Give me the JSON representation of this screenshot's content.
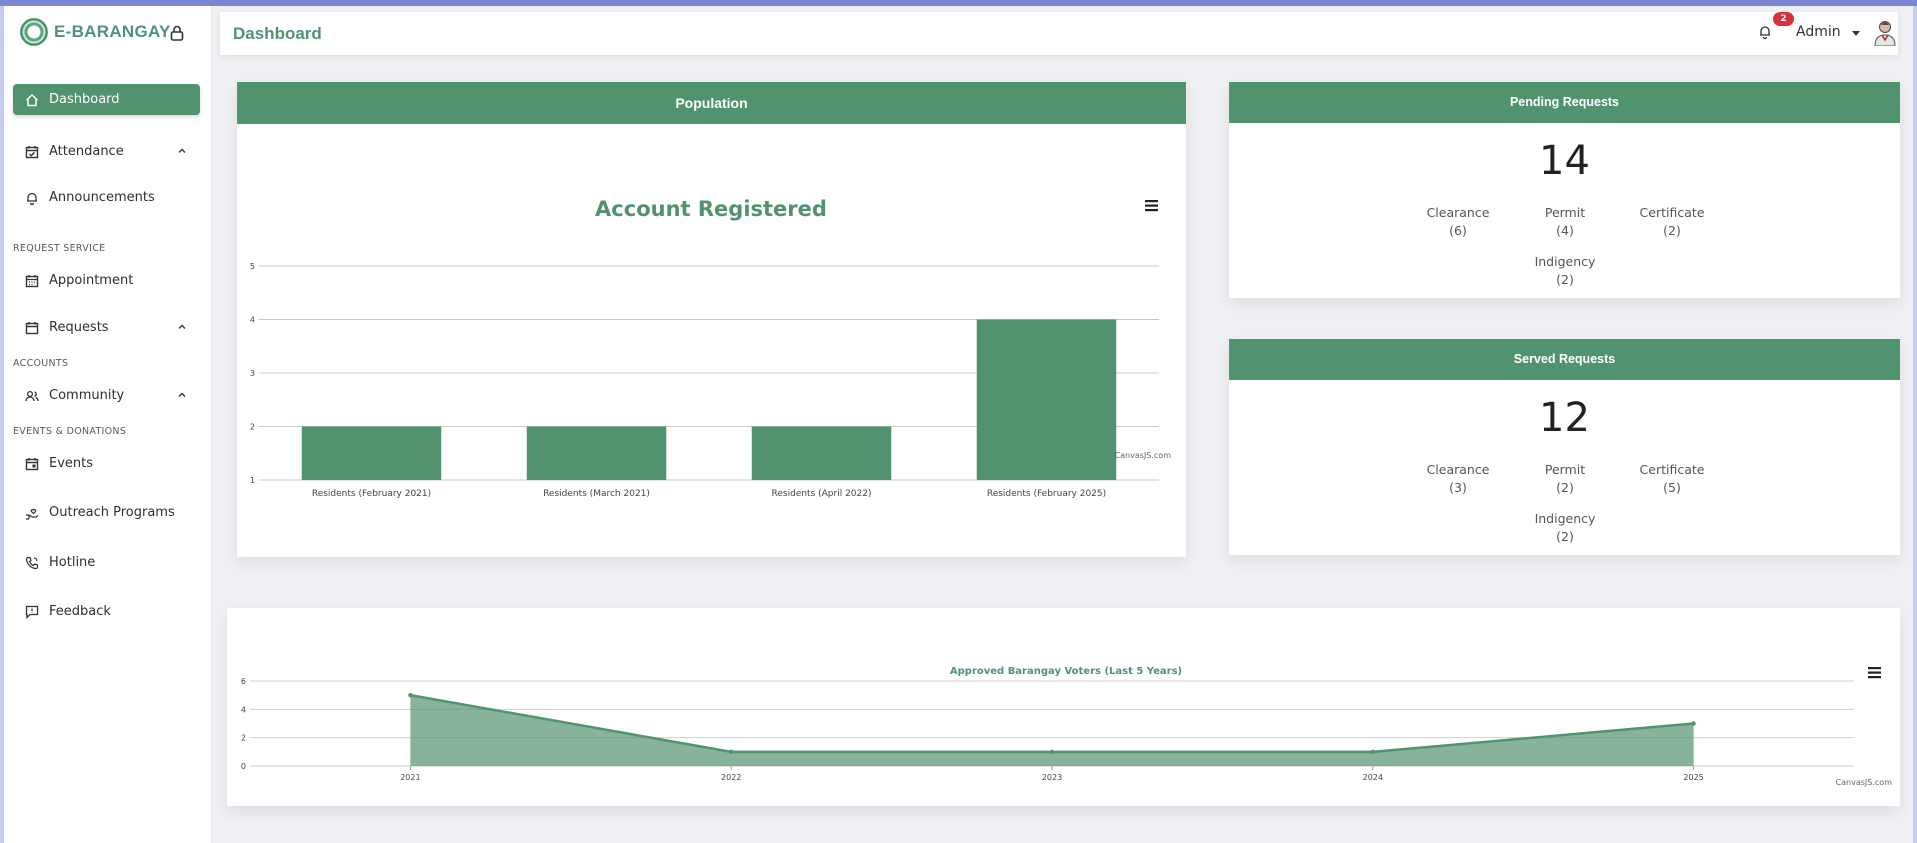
{
  "app": {
    "brand": "E-BARANGAY"
  },
  "header": {
    "title": "Dashboard",
    "notif_count": "2",
    "user_label": "Admin"
  },
  "sidebar": {
    "items": [
      {
        "label": "Dashboard",
        "icon": "home-icon",
        "active": true
      },
      {
        "label": "Attendance",
        "icon": "calendar-check-icon"
      },
      {
        "label": "Announcements",
        "icon": "bell-icon"
      },
      {
        "label": "Appointment",
        "icon": "calendar-icon"
      },
      {
        "label": "Requests",
        "icon": "calendar-blank-icon"
      },
      {
        "label": "Community",
        "icon": "users-icon"
      },
      {
        "label": "Events",
        "icon": "calendar-event-icon"
      },
      {
        "label": "Outreach Programs",
        "icon": "hand-heart-icon"
      },
      {
        "label": "Hotline",
        "icon": "phone-icon"
      },
      {
        "label": "Feedback",
        "icon": "message-icon"
      }
    ],
    "sections": {
      "request_service": "REQUEST SERVICE",
      "accounts": "ACCOUNTS",
      "events_donations": "EVENTS & DONATIONS"
    }
  },
  "population": {
    "title": "Population",
    "chart_credit": "CanvasJS.com"
  },
  "pending": {
    "title": "Pending Requests",
    "total": "14",
    "items": [
      {
        "label": "Clearance",
        "count": "(6)"
      },
      {
        "label": "Permit",
        "count": "(4)"
      },
      {
        "label": "Certificate",
        "count": "(2)"
      },
      {
        "label": "Indigency",
        "count": "(2)"
      }
    ]
  },
  "served": {
    "title": "Served Requests",
    "total": "12",
    "items": [
      {
        "label": "Clearance",
        "count": "(3)"
      },
      {
        "label": "Permit",
        "count": "(2)"
      },
      {
        "label": "Certificate",
        "count": "(5)"
      },
      {
        "label": "Indigency",
        "count": "(2)"
      }
    ]
  },
  "voters": {
    "chart_credit": "CanvasJS.com"
  },
  "chart_data": [
    {
      "type": "bar",
      "title": "Account Registered",
      "categories": [
        "Residents (February 2021)",
        "Residents (March 2021)",
        "Residents (April 2022)",
        "Residents (February 2025)"
      ],
      "values": [
        2,
        2,
        2,
        4
      ],
      "ylim": [
        1,
        5
      ],
      "yticks": [
        1,
        2,
        3,
        4,
        5
      ],
      "grid": true,
      "color": "#52936f"
    },
    {
      "type": "area",
      "title": "Approved Barangay Voters (Last 5 Years)",
      "x": [
        "2021",
        "2022",
        "2023",
        "2024",
        "2025"
      ],
      "values": [
        5,
        1,
        1,
        1,
        3
      ],
      "ylim": [
        0,
        6
      ],
      "yticks": [
        0,
        2,
        4,
        6
      ],
      "grid": true,
      "color": "#52936f"
    }
  ]
}
